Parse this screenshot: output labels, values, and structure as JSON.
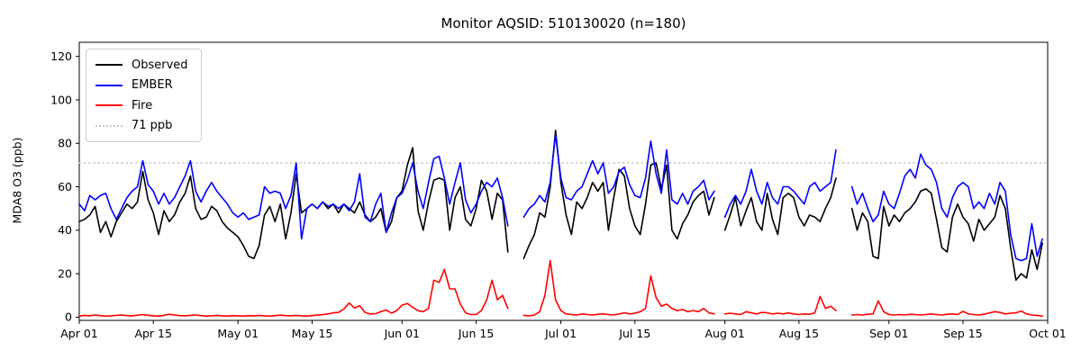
{
  "title": "Monitor AQSID: 510130020 (n=180)",
  "chart_data": {
    "type": "line",
    "title": "Monitor AQSID: 510130020 (n=180)",
    "xlabel": "",
    "ylabel": "MDA8 O3 (ppb)",
    "ylim": [
      -1.5,
      126.5
    ],
    "yticks": [
      0,
      20,
      40,
      60,
      80,
      100,
      120
    ],
    "x_unit": "day index from Apr 01, one point per day",
    "xticks": [
      {
        "i": 0,
        "label": "Apr 01"
      },
      {
        "i": 14,
        "label": "Apr 15"
      },
      {
        "i": 30,
        "label": "May 01"
      },
      {
        "i": 44,
        "label": "May 15"
      },
      {
        "i": 61,
        "label": "Jun 01"
      },
      {
        "i": 75,
        "label": "Jun 15"
      },
      {
        "i": 91,
        "label": "Jul 01"
      },
      {
        "i": 105,
        "label": "Jul 15"
      },
      {
        "i": 122,
        "label": "Aug 01"
      },
      {
        "i": 136,
        "label": "Aug 15"
      },
      {
        "i": 153,
        "label": "Sep 01"
      },
      {
        "i": 167,
        "label": "Sep 15"
      },
      {
        "i": 183,
        "label": "Oct 01"
      }
    ],
    "grid": false,
    "legend_position": "upper left",
    "threshold": {
      "value": 71,
      "label": "71 ppb",
      "color": "#c8c8c8",
      "style": "dotted"
    },
    "legend": {
      "items": [
        {
          "label": "Observed",
          "color": "#000000",
          "style": "solid"
        },
        {
          "label": "EMBER",
          "color": "#0000ff",
          "style": "solid"
        },
        {
          "label": "Fire",
          "color": "#ff0000",
          "style": "solid"
        },
        {
          "label": "71 ppb",
          "color": "#c8c8c8",
          "style": "dotted"
        }
      ]
    },
    "series": [
      {
        "name": "Observed",
        "color": "#000000",
        "values": [
          44,
          45,
          47,
          51,
          39,
          44,
          37,
          44,
          48,
          52,
          50,
          53,
          67,
          54,
          48,
          38,
          49,
          44,
          47,
          53,
          57,
          65,
          50,
          45,
          46,
          51,
          49,
          44,
          41,
          39,
          37,
          33,
          28,
          27,
          33,
          47,
          51,
          44,
          52,
          36,
          48,
          66,
          48,
          50,
          52,
          50,
          53,
          50,
          52,
          48,
          52,
          50,
          48,
          53,
          47,
          44,
          46,
          50,
          39,
          44,
          55,
          58,
          70,
          78,
          49,
          40,
          53,
          63,
          64,
          63,
          40,
          55,
          60,
          45,
          42,
          50,
          63,
          58,
          45,
          57,
          54,
          30,
          null,
          null,
          27,
          33,
          38,
          48,
          46,
          60,
          86,
          62,
          47,
          38,
          53,
          50,
          55,
          62,
          58,
          62,
          40,
          55,
          68,
          65,
          50,
          42,
          38,
          52,
          70,
          71,
          59,
          70,
          40,
          36,
          43,
          47,
          53,
          56,
          58,
          47,
          55,
          null,
          40,
          47,
          55,
          42,
          49,
          55,
          44,
          40,
          57,
          45,
          38,
          55,
          57,
          55,
          46,
          42,
          47,
          46,
          44,
          50,
          55,
          64,
          null,
          null,
          50,
          40,
          48,
          44,
          28,
          27,
          51,
          42,
          47,
          44,
          48,
          50,
          53,
          58,
          59,
          57,
          45,
          32,
          30,
          46,
          52,
          46,
          43,
          35,
          45,
          40,
          43,
          46,
          56,
          50,
          32,
          17,
          20,
          18,
          31,
          22,
          34
        ]
      },
      {
        "name": "EMBER",
        "color": "#0000ff",
        "values": [
          52,
          49,
          56,
          54,
          56,
          57,
          50,
          45,
          50,
          55,
          58,
          60,
          72,
          61,
          58,
          52,
          57,
          52,
          55,
          60,
          65,
          72,
          58,
          53,
          58,
          62,
          58,
          55,
          52,
          48,
          46,
          48,
          45,
          46,
          47,
          60,
          57,
          58,
          57,
          50,
          56,
          71,
          36,
          50,
          52,
          50,
          53,
          51,
          52,
          50,
          52,
          49,
          53,
          66,
          46,
          44,
          52,
          57,
          39,
          48,
          55,
          57,
          63,
          71,
          58,
          50,
          62,
          73,
          74,
          64,
          52,
          62,
          71,
          54,
          48,
          52,
          58,
          62,
          60,
          64,
          55,
          42,
          null,
          null,
          46,
          50,
          52,
          56,
          53,
          62,
          84,
          64,
          55,
          54,
          58,
          60,
          66,
          72,
          66,
          71,
          57,
          60,
          67,
          69,
          61,
          56,
          55,
          64,
          81,
          66,
          57,
          77,
          54,
          52,
          57,
          52,
          58,
          60,
          63,
          54,
          58,
          null,
          46,
          52,
          56,
          52,
          58,
          68,
          58,
          52,
          62,
          55,
          52,
          60,
          60,
          58,
          55,
          52,
          60,
          62,
          58,
          60,
          62,
          77,
          null,
          null,
          60,
          52,
          57,
          50,
          44,
          47,
          58,
          52,
          50,
          57,
          65,
          68,
          64,
          75,
          70,
          68,
          62,
          50,
          46,
          55,
          60,
          62,
          60,
          50,
          53,
          50,
          57,
          52,
          62,
          58,
          38,
          27,
          26,
          27,
          43,
          28,
          36
        ]
      },
      {
        "name": "Fire",
        "color": "#ff0000",
        "values": [
          0.5,
          0.8,
          0.6,
          1,
          0.7,
          0.5,
          0.6,
          0.8,
          1,
          0.7,
          0.6,
          0.9,
          1.2,
          0.8,
          0.6,
          0.5,
          0.8,
          1.3,
          1,
          0.7,
          0.6,
          0.8,
          1,
          0.7,
          0.5,
          0.6,
          0.8,
          0.6,
          0.5,
          0.7,
          0.6,
          0.5,
          0.7,
          0.6,
          0.8,
          0.6,
          0.5,
          0.7,
          0.9,
          0.7,
          0.6,
          0.8,
          0.6,
          0.5,
          0.7,
          0.9,
          1.2,
          1.5,
          2,
          2.2,
          3.7,
          6.5,
          4.2,
          5.2,
          2.2,
          1.4,
          1.6,
          2.5,
          3.3,
          1.8,
          3,
          5.5,
          6.3,
          4.5,
          3,
          2.5,
          4,
          17,
          16,
          22,
          13,
          13,
          6,
          2,
          1.2,
          1.2,
          3,
          8,
          17,
          8,
          10,
          4,
          null,
          null,
          0.8,
          0.6,
          1,
          2.5,
          10,
          26,
          8,
          3,
          1.5,
          1.2,
          1,
          1.5,
          1.2,
          1,
          1.3,
          1.5,
          1.2,
          1,
          1.5,
          2,
          1.5,
          1.8,
          2.5,
          4,
          19,
          9,
          5,
          6,
          4,
          3,
          3.5,
          2.5,
          3,
          2.5,
          4,
          2,
          1.5,
          null,
          1.5,
          1.8,
          1.5,
          1.2,
          2.5,
          2,
          1.5,
          2.2,
          2,
          1.5,
          1.8,
          1.5,
          2,
          1.5,
          1.2,
          1.5,
          1.3,
          2,
          9.5,
          4,
          5,
          3,
          null,
          null,
          1,
          1.2,
          1,
          1.3,
          1.5,
          7.5,
          2.5,
          1.2,
          1,
          1.2,
          1,
          1.3,
          1.2,
          1,
          1.2,
          1.5,
          1.2,
          1,
          1.3,
          1.5,
          1.2,
          2.7,
          1.5,
          1.2,
          1,
          1.3,
          2,
          2.5,
          2.2,
          1.5,
          1.8,
          2,
          2.8,
          1.5,
          1,
          0.8,
          0.5
        ]
      }
    ]
  }
}
